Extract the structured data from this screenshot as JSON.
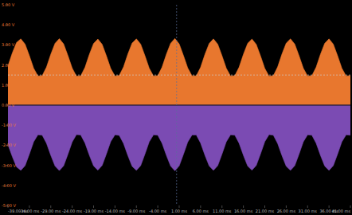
{
  "chart_data": {
    "type": "area",
    "x": [
      -39,
      -38,
      -37,
      -36,
      -35,
      -34,
      -33,
      -32,
      -31,
      -30,
      -29,
      -28,
      -27,
      -26,
      -25,
      -24,
      -23,
      -22,
      -21,
      -20,
      -19,
      -18,
      -17,
      -16,
      -15,
      -14,
      -13,
      -12,
      -11,
      -10,
      -9,
      -8,
      -7,
      -6,
      -5,
      -4,
      -3,
      -2,
      -1,
      0,
      1,
      2,
      3,
      4,
      5,
      6,
      7,
      8,
      9,
      10,
      11,
      12,
      13,
      14,
      15,
      16,
      17,
      18,
      19,
      20,
      21,
      22,
      23,
      24,
      25,
      26,
      27,
      28,
      29,
      30,
      31,
      32,
      33,
      34,
      35,
      36,
      37,
      38,
      39,
      40,
      41
    ],
    "series": [
      {
        "color": "#e8772e",
        "values": [
          1.95,
          2.59,
          3.12,
          3.3,
          3.04,
          2.46,
          1.84,
          1.45,
          1.47,
          1.89,
          2.53,
          3.08,
          3.31,
          3.05,
          2.47,
          1.85,
          1.44,
          1.46,
          1.88,
          2.52,
          3.07,
          3.29,
          3.03,
          2.45,
          1.83,
          1.45,
          1.48,
          1.9,
          2.54,
          3.09,
          3.3,
          3.04,
          2.46,
          1.84,
          1.45,
          1.47,
          1.89,
          2.53,
          3.08,
          3.32,
          3.05,
          2.47,
          1.85,
          1.46,
          1.46,
          1.88,
          2.52,
          3.07,
          3.3,
          3.04,
          2.46,
          1.84,
          1.45,
          1.47,
          1.89,
          2.53,
          3.08,
          3.29,
          3.03,
          2.45,
          1.83,
          1.44,
          1.47,
          1.9,
          2.54,
          3.09,
          3.3,
          3.04,
          2.46,
          1.84,
          1.45,
          1.47,
          1.89,
          2.53,
          3.08,
          3.3,
          3.04,
          2.46,
          1.84,
          1.45,
          1.47
        ]
      },
      {
        "color": "#7b4bb3",
        "values": [
          -1.97,
          -2.56,
          -3.08,
          -3.25,
          -3.02,
          -2.44,
          -1.83,
          -1.48,
          -1.5,
          -1.9,
          -2.5,
          -3.04,
          -3.26,
          -3.03,
          -2.45,
          -1.84,
          -1.47,
          -1.49,
          -1.89,
          -2.49,
          -3.03,
          -3.24,
          -3.01,
          -2.43,
          -1.82,
          -1.48,
          -1.51,
          -1.91,
          -2.51,
          -3.05,
          -3.25,
          -3.02,
          -2.44,
          -1.83,
          -1.48,
          -1.5,
          -1.9,
          -2.5,
          -3.04,
          -3.27,
          -3.03,
          -2.45,
          -1.84,
          -1.49,
          -1.49,
          -1.89,
          -2.49,
          -3.03,
          -3.25,
          -3.02,
          -2.44,
          -1.83,
          -1.48,
          -1.5,
          -1.9,
          -2.5,
          -3.04,
          -3.24,
          -3.01,
          -2.43,
          -1.82,
          -1.47,
          -1.5,
          -1.91,
          -2.51,
          -3.05,
          -3.25,
          -3.02,
          -2.44,
          -1.83,
          -1.48,
          -1.5,
          -1.9,
          -2.5,
          -3.04,
          -3.25,
          -3.02,
          -2.44,
          -1.83,
          -1.48,
          -1.5
        ]
      }
    ],
    "xlim": [
      -39,
      41
    ],
    "xticks": [
      {
        "value": -39,
        "label": "-39.00 ms"
      },
      {
        "value": -34,
        "label": "-34.00 ms"
      },
      {
        "value": -29,
        "label": "-29.00 ms"
      },
      {
        "value": -24,
        "label": "-24.00 ms"
      },
      {
        "value": -19,
        "label": "-19.00 ms"
      },
      {
        "value": -14,
        "label": "-14.00 ms"
      },
      {
        "value": -9,
        "label": "-9.00 ms"
      },
      {
        "value": -4,
        "label": "-4.00 ms"
      },
      {
        "value": 1,
        "label": "1.00 ms"
      },
      {
        "value": 6,
        "label": "6.00 ms"
      },
      {
        "value": 11,
        "label": "11.00 ms"
      },
      {
        "value": 16,
        "label": "16.00 ms"
      },
      {
        "value": 21,
        "label": "21.00 ms"
      },
      {
        "value": 26,
        "label": "26.00 ms"
      },
      {
        "value": 31,
        "label": "31.00 ms"
      },
      {
        "value": 36,
        "label": "36.00 ms"
      },
      {
        "value": 41,
        "label": "41.00 ms"
      }
    ],
    "ylim": [
      -5,
      5
    ],
    "yticks": [
      {
        "value": 5,
        "label": "5.00 V"
      },
      {
        "value": 4,
        "label": "4.00 V"
      },
      {
        "value": 3,
        "label": "3.00 V"
      },
      {
        "value": 2,
        "label": "2.00 V"
      },
      {
        "value": 1,
        "label": "1.00 V"
      },
      {
        "value": 0,
        "label": "0.00 V"
      },
      {
        "value": -1,
        "label": "-1.00 V"
      },
      {
        "value": -2,
        "label": "-2.00 V"
      },
      {
        "value": -3,
        "label": "-3.00 V"
      },
      {
        "value": -4,
        "label": "-4.00 V"
      },
      {
        "value": -5,
        "label": "-5.00 V"
      }
    ],
    "trigger_level": 1.5,
    "trigger_time": 0.4,
    "grid": false
  }
}
